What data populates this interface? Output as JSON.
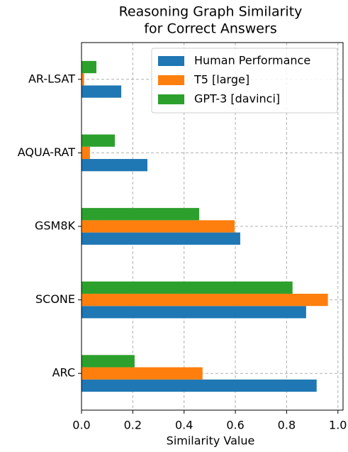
{
  "chart_data": {
    "type": "barh",
    "title": [
      "Reasoning Graph Similarity",
      "for Correct Answers"
    ],
    "xlabel": "Similarity Value",
    "categories": [
      "AR-LSAT",
      "AQUA-RAT",
      "GSM8K",
      "SCONE",
      "ARC"
    ],
    "series": [
      {
        "name": "Human Performance",
        "color": "#1f77b4",
        "values": [
          0.155,
          0.257,
          0.619,
          0.876,
          0.917
        ]
      },
      {
        "name": "T5 [large]",
        "color": "#ff7f0e",
        "values": [
          0.01,
          0.033,
          0.597,
          0.961,
          0.472
        ]
      },
      {
        "name": "GPT-3 [davinci]",
        "color": "#2ca02c",
        "values": [
          0.058,
          0.13,
          0.459,
          0.823,
          0.207
        ]
      }
    ],
    "xlim": [
      0,
      1.02
    ],
    "xticks": [
      {
        "value": 0,
        "label": "0.0"
      },
      0.2,
      0.4,
      0.6,
      0.8,
      {
        "value": 1,
        "label": "1.0"
      }
    ],
    "grid": true,
    "legend": "upper right"
  }
}
